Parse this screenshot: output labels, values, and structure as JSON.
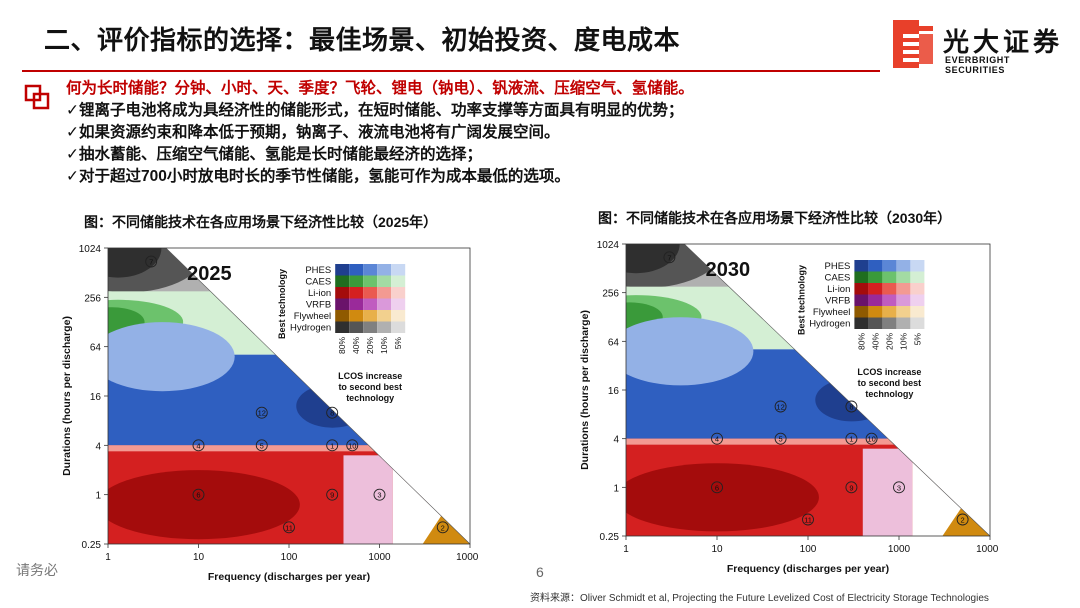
{
  "title": "二、评价指标的选择：最佳场景、初始投资、度电成本",
  "logo": {
    "cn": "光大证券",
    "en": "EVERBRIGHT SECURITIES"
  },
  "bullets": {
    "lead": "何为长时储能？分钟、小时、天、季度？飞轮、锂电（钠电）、钒液流、压缩空气、氢储能。",
    "items": [
      "✓锂离子电池将成为具经济性的储能形式，在短时储能、功率支撑等方面具有明显的优势；",
      "✓如果资源约束和降本低于预期，钠离子、液流电池将有广阔发展空间。",
      "✓抽水蓄能、压缩空气储能、氢能是长时储能最经济的选择；",
      "✓对于超过700小时放电时长的季节性储能，氢能可作为成本最低的选项。"
    ]
  },
  "chart_data": [
    {
      "type": "heatmap",
      "caption": "图：不同储能技术在各应用场景下经济性比较（2025年）",
      "year_label": "2025",
      "xlabel": "Frequency (discharges per year)",
      "ylabel": "Durations (hours per discharge)",
      "x_ticks": [
        "1",
        "10",
        "100",
        "1000",
        "10000"
      ],
      "y_ticks": [
        "0.25",
        "1",
        "4",
        "16",
        "64",
        "256",
        "1024"
      ],
      "xlim": [
        1,
        10000
      ],
      "ylim": [
        0.25,
        1024
      ],
      "x_scale": "log",
      "y_scale": "log",
      "legend": {
        "title": "Best technology",
        "technologies": [
          "PHES",
          "CAES",
          "Li-ion",
          "VRFB",
          "Flywheel",
          "Hydrogen"
        ],
        "increase_levels": [
          "80%",
          "40%",
          "20%",
          "10%",
          "5%"
        ],
        "scale_label": "LCOS increase to second best technology"
      },
      "regions": [
        {
          "technology": "Hydrogen",
          "area": "long duration, low frequency"
        },
        {
          "technology": "CAES",
          "area": "64-256 h"
        },
        {
          "technology": "PHES",
          "area": "4-64 h"
        },
        {
          "technology": "Li-ion",
          "area": "below 4 h"
        },
        {
          "technology": "Flywheel",
          "area": "high frequency, short duration"
        }
      ],
      "markers": [
        {
          "label": "7",
          "x": 3,
          "y": 700
        },
        {
          "label": "12",
          "x": 50,
          "y": 10
        },
        {
          "label": "8",
          "x": 300,
          "y": 10
        },
        {
          "label": "4",
          "x": 10,
          "y": 4
        },
        {
          "label": "5",
          "x": 50,
          "y": 4
        },
        {
          "label": "1",
          "x": 300,
          "y": 4
        },
        {
          "label": "10",
          "x": 500,
          "y": 4
        },
        {
          "label": "6",
          "x": 10,
          "y": 1
        },
        {
          "label": "9",
          "x": 300,
          "y": 1
        },
        {
          "label": "3",
          "x": 1000,
          "y": 1
        },
        {
          "label": "11",
          "x": 100,
          "y": 0.4
        },
        {
          "label": "2",
          "x": 5000,
          "y": 0.4
        }
      ]
    },
    {
      "type": "heatmap",
      "caption": "图：不同储能技术在各应用场景下经济性比较（2030年）",
      "year_label": "2030",
      "xlabel": "Frequency (discharges per year)",
      "ylabel": "Durations (hours per discharge)",
      "x_ticks": [
        "1",
        "10",
        "100",
        "1000",
        "10000"
      ],
      "y_ticks": [
        "0.25",
        "1",
        "4",
        "16",
        "64",
        "256",
        "1024"
      ],
      "xlim": [
        1,
        10000
      ],
      "ylim": [
        0.25,
        1024
      ],
      "x_scale": "log",
      "y_scale": "log",
      "legend": {
        "title": "Best technology",
        "technologies": [
          "PHES",
          "CAES",
          "Li-ion",
          "VRFB",
          "Flywheel",
          "Hydrogen"
        ],
        "increase_levels": [
          "80%",
          "40%",
          "20%",
          "10%",
          "5%"
        ],
        "scale_label": "LCOS increase to second best technology"
      },
      "regions": [
        {
          "technology": "Hydrogen",
          "area": "long duration, low frequency"
        },
        {
          "technology": "CAES",
          "area": "64-256 h"
        },
        {
          "technology": "PHES",
          "area": "4-64 h"
        },
        {
          "technology": "Li-ion",
          "area": "below 4 h"
        },
        {
          "technology": "Flywheel",
          "area": "high frequency, short duration"
        }
      ],
      "markers": [
        {
          "label": "7",
          "x": 3,
          "y": 700
        },
        {
          "label": "12",
          "x": 50,
          "y": 10
        },
        {
          "label": "8",
          "x": 300,
          "y": 10
        },
        {
          "label": "4",
          "x": 10,
          "y": 4
        },
        {
          "label": "5",
          "x": 50,
          "y": 4
        },
        {
          "label": "1",
          "x": 300,
          "y": 4
        },
        {
          "label": "10",
          "x": 500,
          "y": 4
        },
        {
          "label": "6",
          "x": 10,
          "y": 1
        },
        {
          "label": "9",
          "x": 300,
          "y": 1
        },
        {
          "label": "3",
          "x": 1000,
          "y": 1
        },
        {
          "label": "11",
          "x": 100,
          "y": 0.4
        },
        {
          "label": "2",
          "x": 5000,
          "y": 0.4
        }
      ]
    }
  ],
  "footer": {
    "watermark": "请务必",
    "page_number": "6",
    "source": "资料来源：Oliver Schmidt et al, Projecting the Future Levelized Cost of Electricity Storage Technologies"
  },
  "colors": {
    "accent": "#c00000",
    "PHES": "#2b5cb8",
    "CAES": "#3a9a3a",
    "Li-ion": "#d42020",
    "VRFB": "#9a2a9a",
    "Flywheel": "#d08a10",
    "Hydrogen": "#4a4a4a"
  }
}
